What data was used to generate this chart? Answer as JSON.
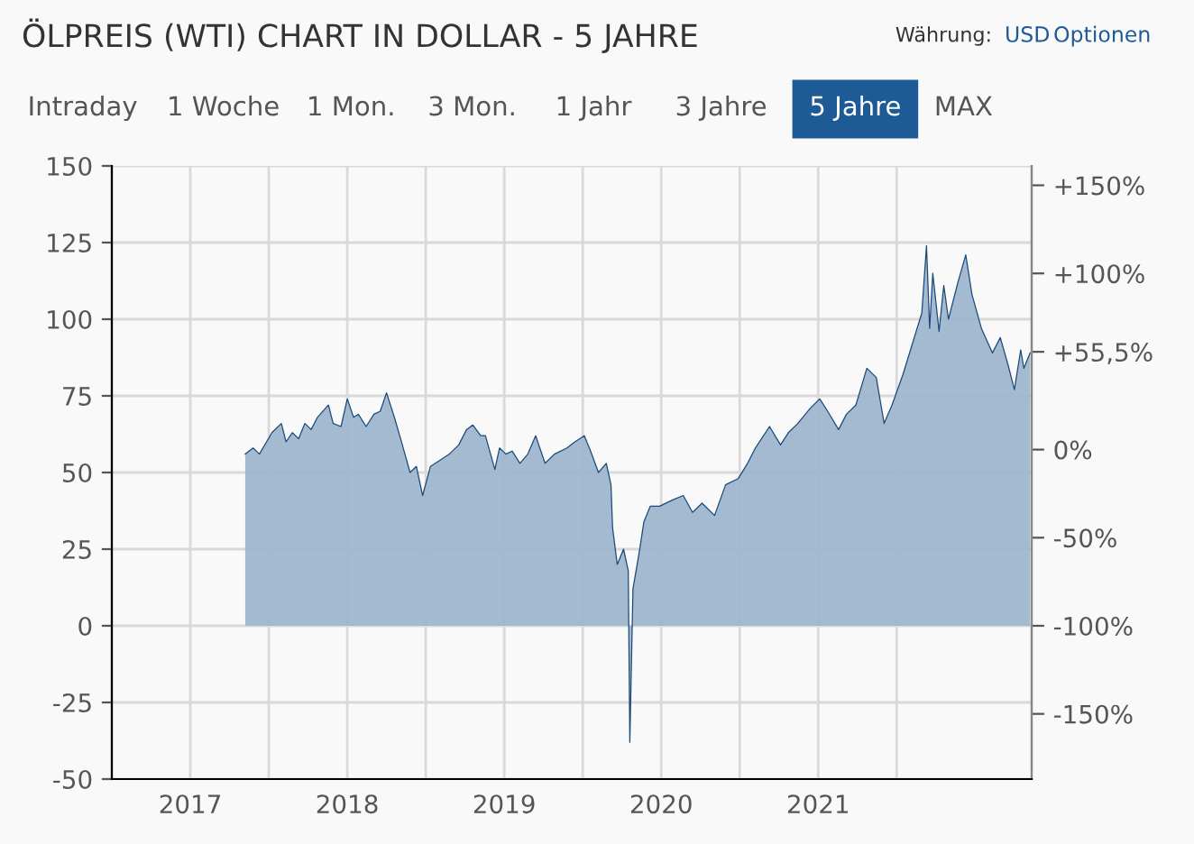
{
  "chart_data": {
    "type": "area",
    "title": "ÖLPREIS (WTI) CHART IN DOLLAR - 5 JAHRE",
    "annotations": [
      "Intraday",
      "1 Woche",
      "1 Mon.",
      "3 Mon.",
      "1 Jahr",
      "3 Jahre",
      "5 Jahre",
      "MAX",
      "Währung:",
      "USD",
      "Optionen"
    ],
    "series": [
      {
        "color": "#1b4a7a",
        "x": [
          2017.85,
          2017.9,
          2017.94,
          2018.02,
          2018.08,
          2018.11,
          2018.15,
          2018.19,
          2018.23,
          2018.27,
          2018.31,
          2018.38,
          2018.41,
          2018.46,
          2018.5,
          2018.54,
          2018.57,
          2018.62,
          2018.67,
          2018.71,
          2018.75,
          2018.8,
          2018.84,
          2018.9,
          2018.94,
          2018.98,
          2019.03,
          2019.09,
          2019.15,
          2019.21,
          2019.26,
          2019.3,
          2019.35,
          2019.38,
          2019.44,
          2019.47,
          2019.51,
          2019.55,
          2019.6,
          2019.65,
          2019.7,
          2019.76,
          2019.82,
          2019.9,
          2019.95,
          2020.01,
          2020.05,
          2020.1,
          2020.15,
          2020.18,
          2020.19,
          2020.22,
          2020.26,
          2020.29,
          2020.3,
          2020.32,
          2020.36,
          2020.39,
          2020.43,
          2020.49,
          2020.57,
          2020.64,
          2020.7,
          2020.76,
          2020.84,
          2020.91,
          2020.99,
          2021.05,
          2021.1,
          2021.19,
          2021.26,
          2021.31,
          2021.37,
          2021.45,
          2021.51,
          2021.56,
          2021.63,
          2021.68,
          2021.74,
          2021.81,
          2021.87,
          2021.92,
          2021.97,
          2022.04,
          2022.1,
          2022.16,
          2022.19,
          2022.21,
          2022.23,
          2022.27,
          2022.3,
          2022.33,
          2022.39,
          2022.44,
          2022.48,
          2022.54,
          2022.61,
          2022.66,
          2022.71,
          2022.75,
          2022.79,
          2022.81,
          2022.85
        ],
        "values": [
          56,
          58,
          56,
          63,
          66,
          60,
          63,
          61,
          66,
          64,
          68,
          72,
          66,
          65,
          74,
          68,
          69,
          65,
          69,
          70,
          76,
          68,
          61,
          50,
          52,
          42.5,
          52,
          54,
          56,
          59,
          64,
          65.5,
          62,
          62,
          51,
          58,
          56,
          57,
          53,
          56,
          62,
          53,
          56,
          58,
          60,
          62,
          57,
          50,
          53,
          46,
          32,
          20,
          25,
          18,
          -38,
          12,
          24,
          34,
          39,
          39,
          41,
          42.5,
          37,
          40,
          36,
          46,
          48,
          53,
          58,
          65,
          59,
          63,
          66,
          71,
          74,
          70,
          64,
          69,
          72,
          84,
          81,
          66,
          72,
          82,
          92,
          102,
          124,
          97,
          115,
          96,
          111,
          100,
          112,
          121,
          108,
          97,
          89,
          94,
          85,
          77,
          90,
          84,
          89
        ]
      }
    ],
    "xlim": [
      2017.0,
      2022.86
    ],
    "xticks": [
      {
        "value": 2017.5,
        "label": "2017"
      },
      {
        "value": 2018,
        "label": null
      },
      {
        "value": 2018.5,
        "label": "2018"
      },
      {
        "value": 2019,
        "label": null
      },
      {
        "value": 2019.5,
        "label": "2019"
      },
      {
        "value": 2020,
        "label": null
      },
      {
        "value": 2020.5,
        "label": "2020"
      },
      {
        "value": 2021,
        "label": null
      },
      {
        "value": 2021.5,
        "label": "2021"
      },
      {
        "value": 2022,
        "label": null
      }
    ],
    "ylim": [
      -50,
      150
    ],
    "yticks": [
      -50,
      -25,
      0,
      25,
      50,
      75,
      100,
      125,
      150
    ],
    "y2lim": [
      -187,
      161
    ],
    "y2ticks": [
      {
        "value": -150,
        "label": "-150%"
      },
      {
        "value": -100,
        "label": "-100%"
      },
      {
        "value": -50,
        "label": "-50%"
      },
      {
        "value": 0,
        "label": "0%"
      },
      {
        "value": 55.5,
        "label": "+55,5%"
      },
      {
        "value": 100,
        "label": "+100%"
      },
      {
        "value": 150,
        "label": "+150%"
      }
    ],
    "grid": true
  }
}
